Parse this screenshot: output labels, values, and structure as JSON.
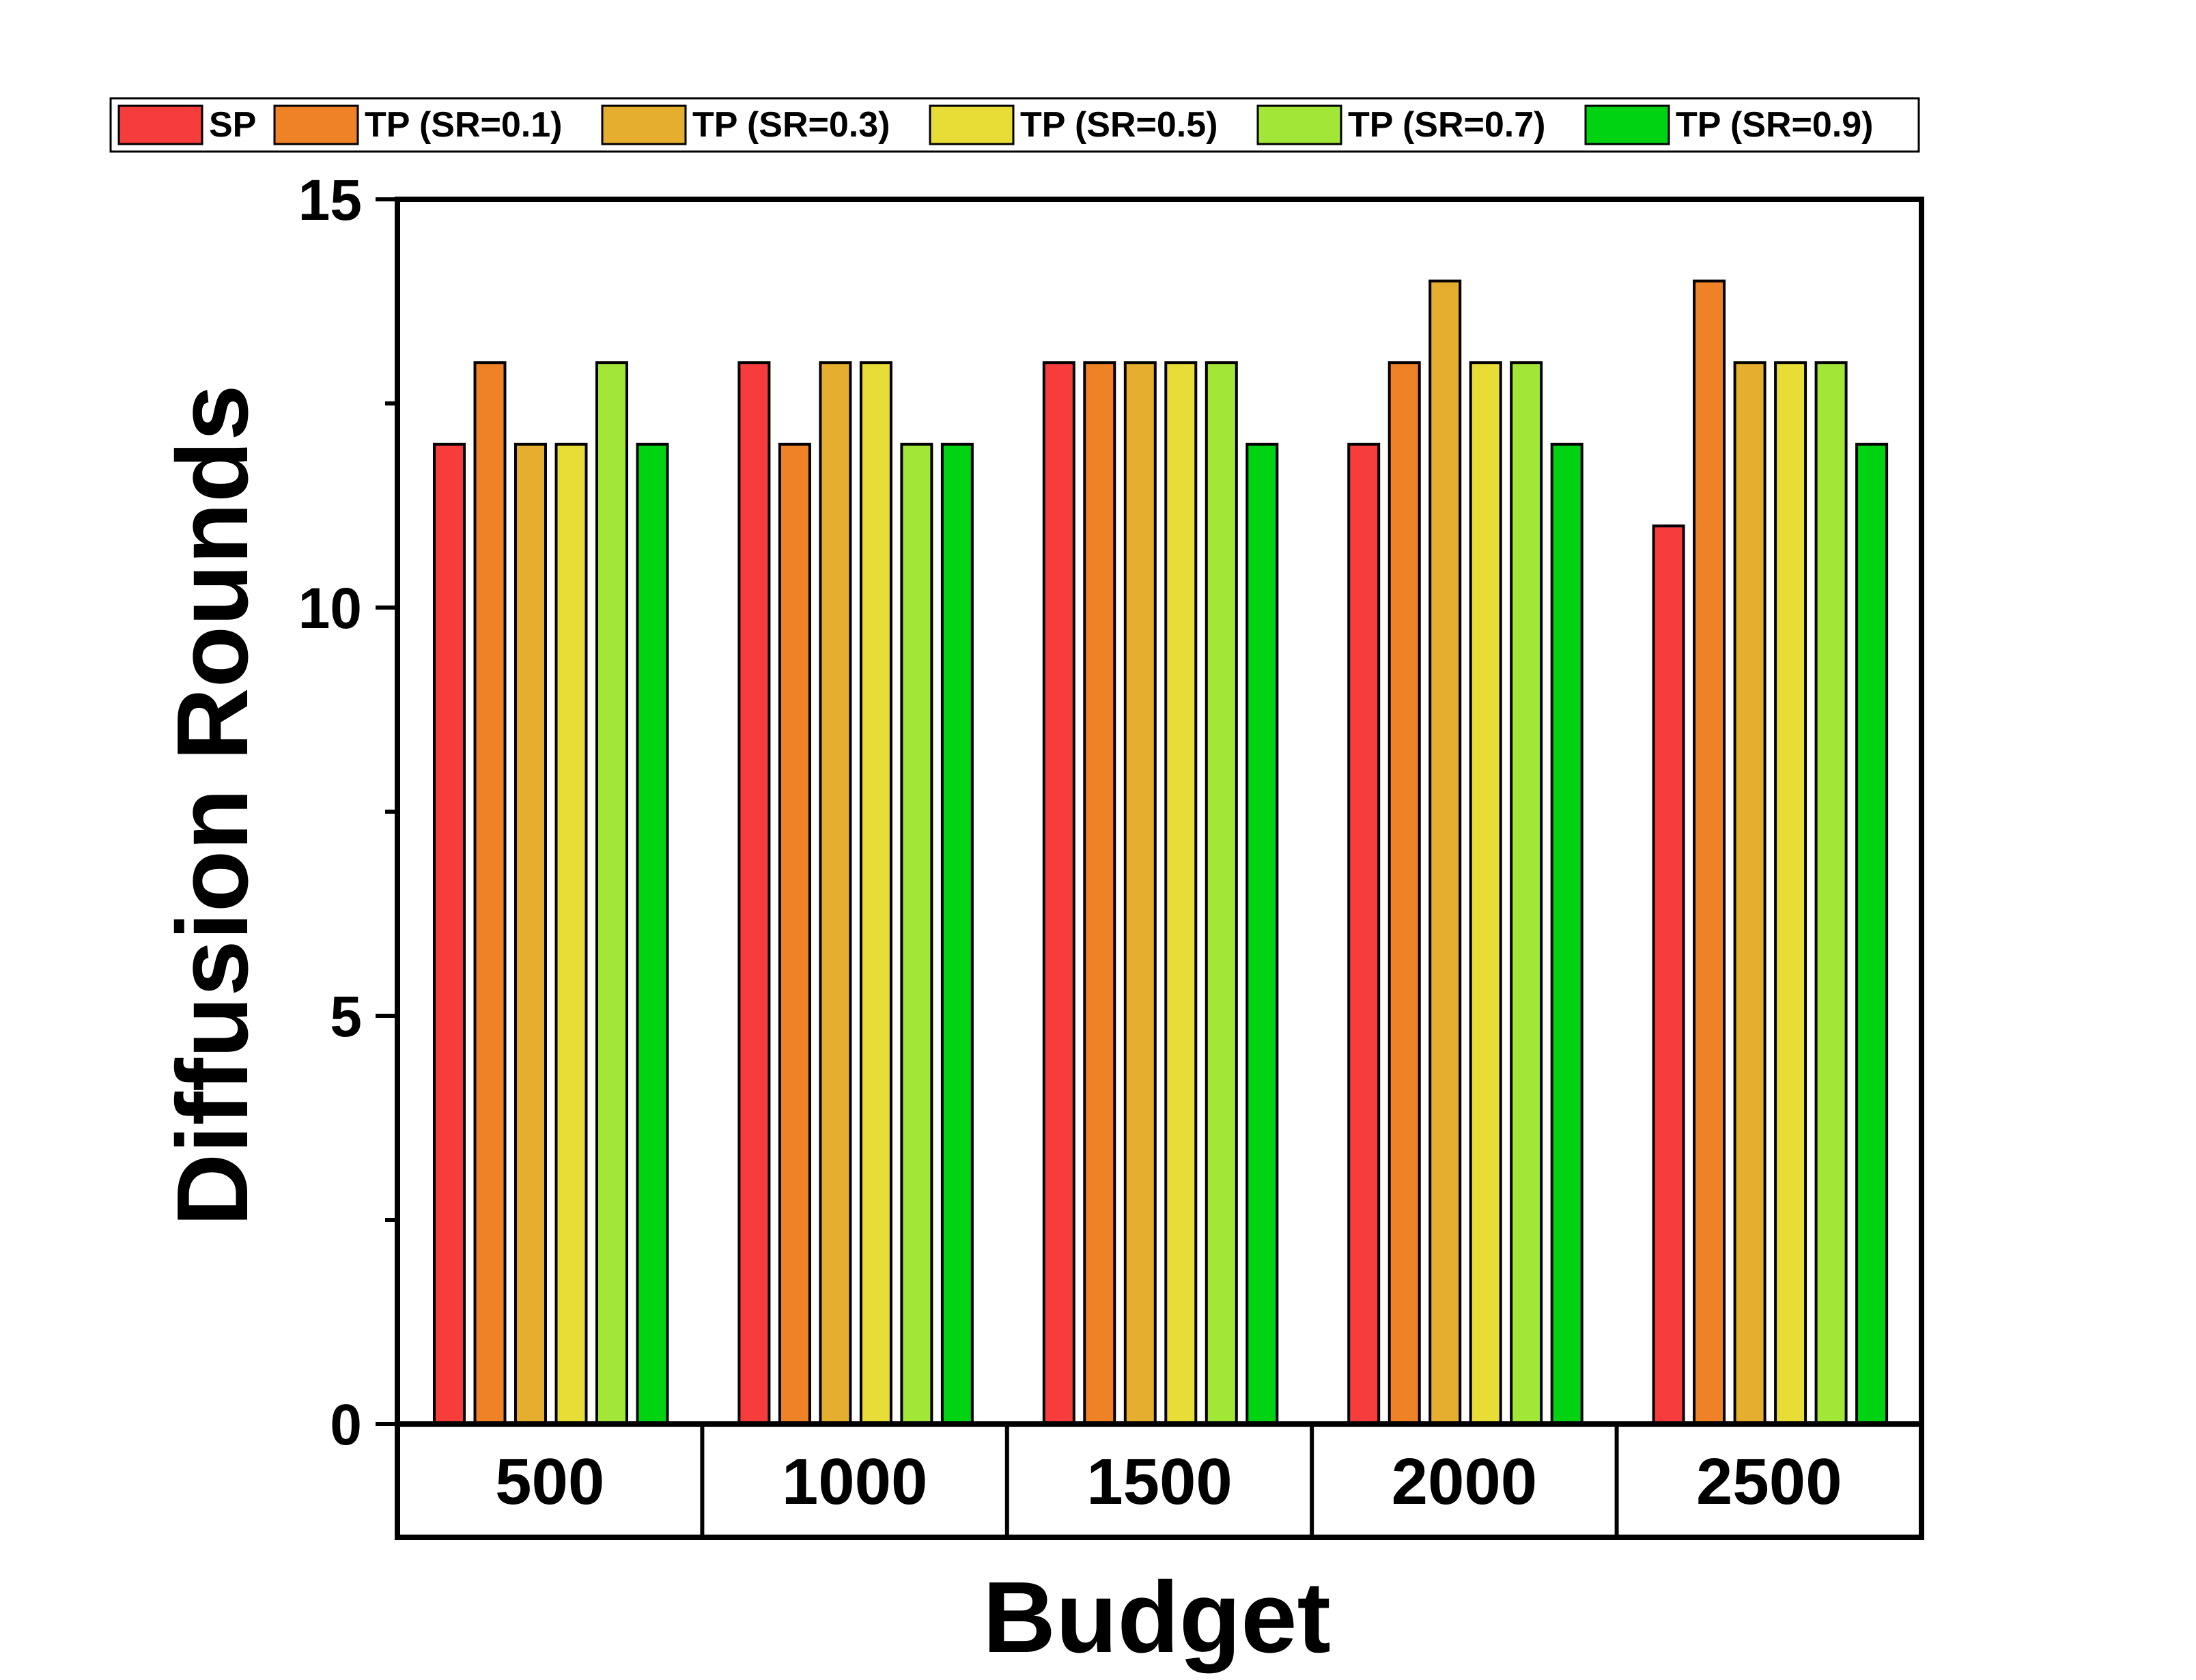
{
  "chart_data": {
    "type": "bar",
    "title": "",
    "xlabel": "Budget",
    "ylabel": "Diffusion Rounds",
    "ylim": [
      0,
      15
    ],
    "yticks": [
      0,
      5,
      10,
      15
    ],
    "yminor_ticks": [
      2.5,
      7.5,
      12.5
    ],
    "ytick_labels": [
      "0",
      "5",
      "10",
      "15"
    ],
    "categories": [
      "500",
      "1000",
      "1500",
      "2000",
      "2500"
    ],
    "legend_position": "top",
    "grid": false,
    "series": [
      {
        "name": "SP",
        "color": "#F73C3C",
        "values": [
          12,
          13,
          13,
          12,
          11
        ]
      },
      {
        "name": "TP (SR=0.1)",
        "color": "#EF8127",
        "values": [
          13,
          12,
          13,
          13,
          14
        ]
      },
      {
        "name": "TP (SR=0.3)",
        "color": "#E6AE2E",
        "values": [
          12,
          13,
          13,
          14,
          13
        ]
      },
      {
        "name": "TP (SR=0.5)",
        "color": "#E7DD36",
        "values": [
          12,
          13,
          13,
          13,
          13
        ]
      },
      {
        "name": "TP (SR=0.7)",
        "color": "#A2E637",
        "values": [
          13,
          12,
          13,
          13,
          13
        ]
      },
      {
        "name": "TP (SR=0.9)",
        "color": "#00D412",
        "values": [
          12,
          12,
          12,
          12,
          12
        ]
      }
    ]
  }
}
